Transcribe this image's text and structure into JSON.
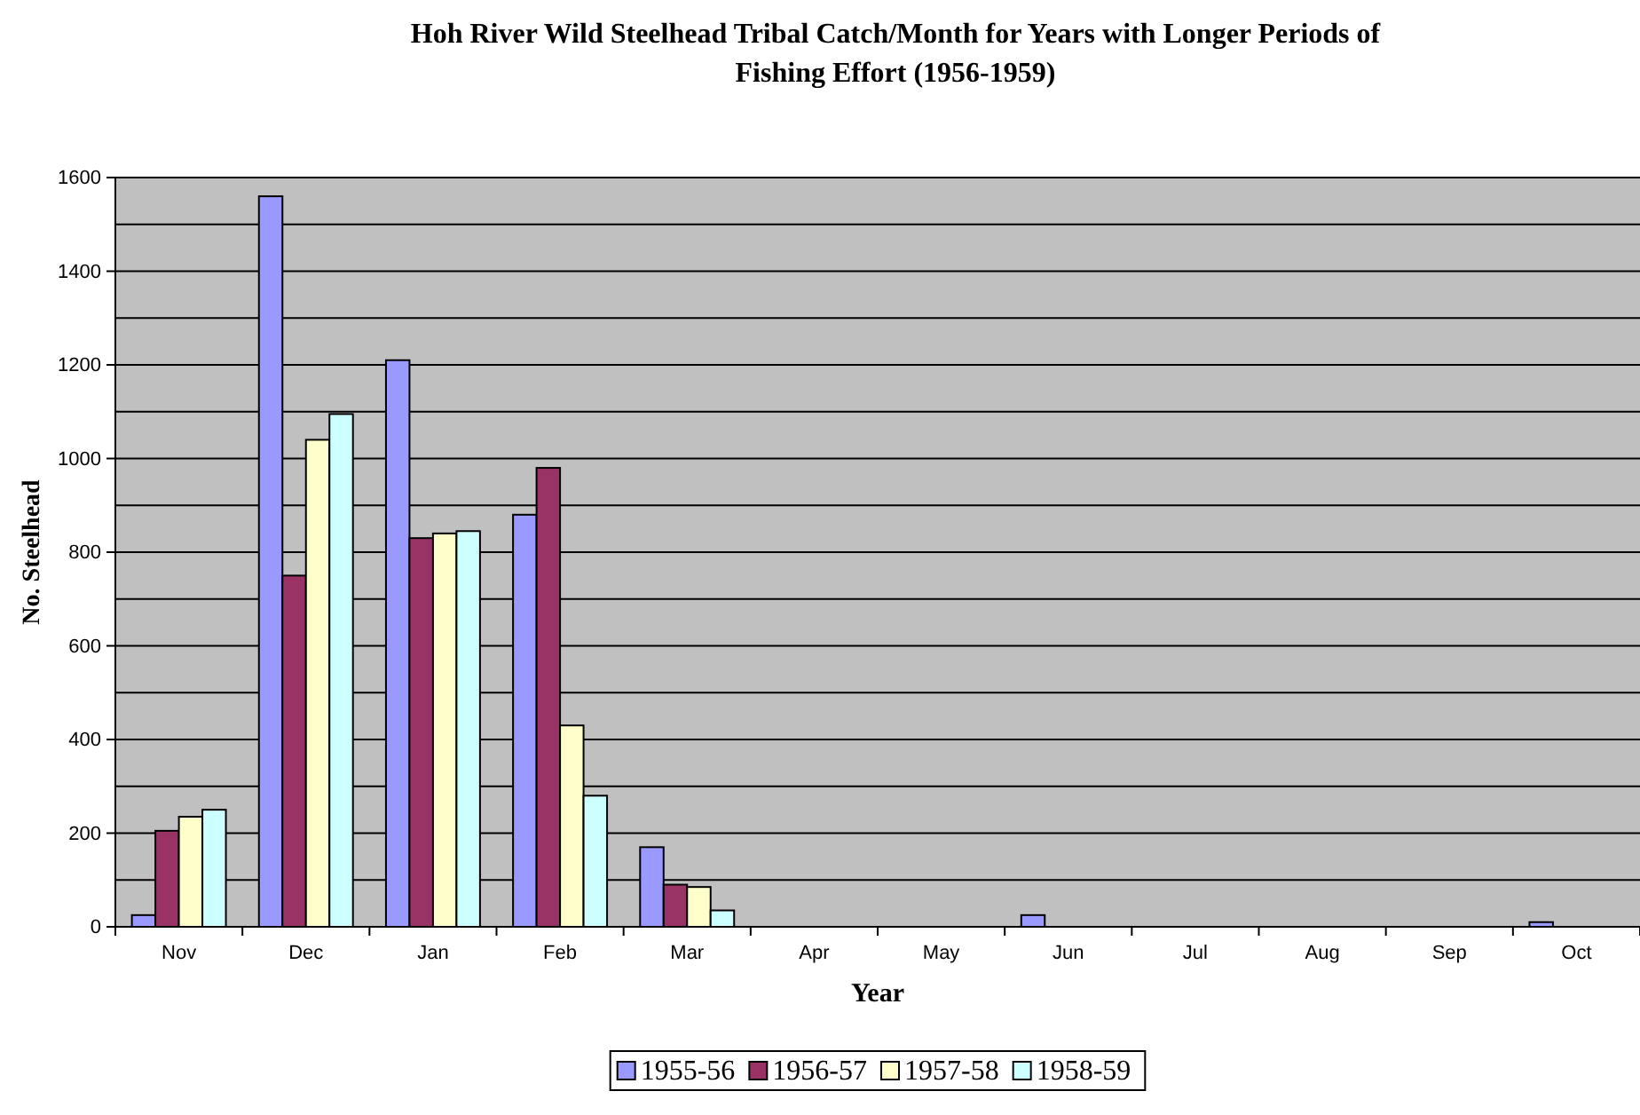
{
  "chart_data": {
    "type": "bar",
    "title": "Hoh River Wild Steelhead Tribal Catch/Month for Years with Longer Periods of Fishing Effort (1956-1959)",
    "xlabel": "Year",
    "ylabel": "No. Steelhead",
    "categories": [
      "Nov",
      "Dec",
      "Jan",
      "Feb",
      "Mar",
      "Apr",
      "May",
      "Jun",
      "Jul",
      "Aug",
      "Sep",
      "Oct"
    ],
    "series": [
      {
        "name": "1955-56",
        "color": "#9999ff",
        "values": [
          25,
          1560,
          1210,
          880,
          170,
          0,
          0,
          25,
          0,
          0,
          0,
          10
        ]
      },
      {
        "name": "1956-57",
        "color": "#993366",
        "values": [
          205,
          750,
          830,
          980,
          90,
          0,
          0,
          0,
          0,
          0,
          0,
          0
        ]
      },
      {
        "name": "1957-58",
        "color": "#ffffcc",
        "values": [
          235,
          1040,
          840,
          430,
          85,
          0,
          0,
          0,
          0,
          0,
          0,
          0
        ]
      },
      {
        "name": "1958-59",
        "color": "#ccffff",
        "values": [
          250,
          1095,
          845,
          280,
          35,
          0,
          0,
          0,
          0,
          0,
          0,
          0
        ]
      }
    ],
    "ylim": [
      0,
      1600
    ],
    "yticks": [
      0,
      {
        "value": 100,
        "label": null
      },
      200,
      {
        "value": 300,
        "label": null
      },
      400,
      {
        "value": 500,
        "label": null
      },
      600,
      {
        "value": 700,
        "label": null
      },
      800,
      {
        "value": 900,
        "label": null
      },
      1000,
      {
        "value": 1100,
        "label": null
      },
      1200,
      {
        "value": 1300,
        "label": null
      },
      1400,
      {
        "value": 1500,
        "label": null
      },
      1600
    ],
    "grid": "y",
    "legend": "bottom"
  }
}
